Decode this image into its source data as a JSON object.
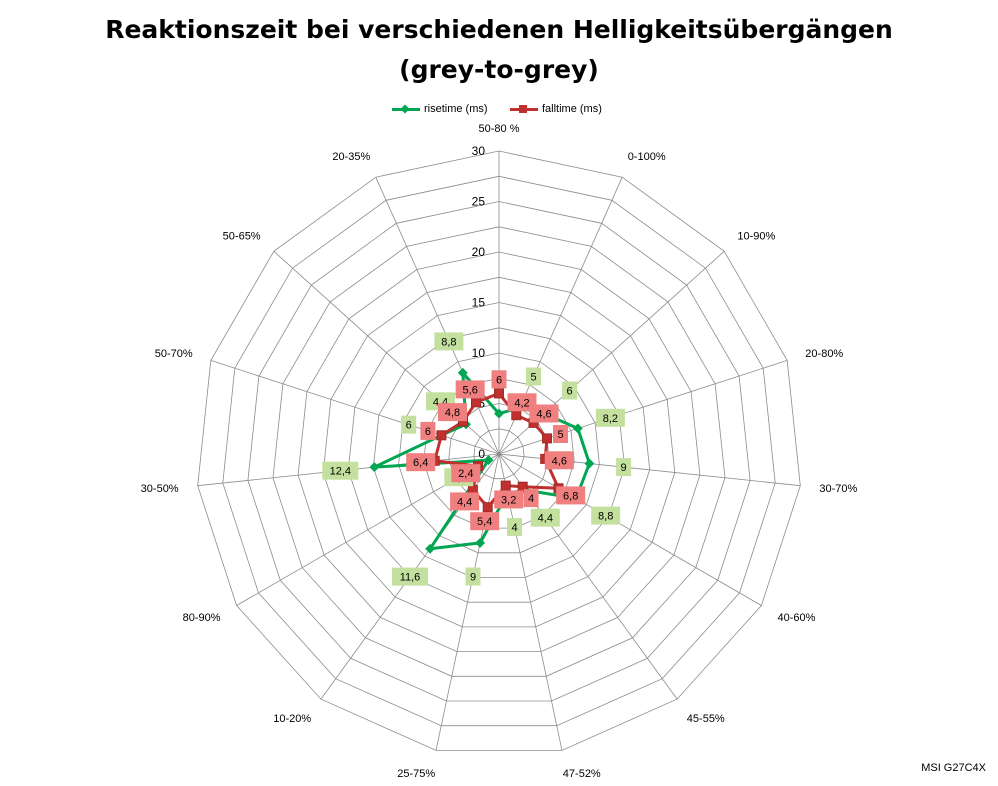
{
  "footer": {
    "model": "MSI G27C4X"
  },
  "chart_data": {
    "type": "radar",
    "title": "Reaktionszeit bei verschiedenen Helligkeitsübergängen",
    "subtitle": "(grey-to-grey)",
    "categories": [
      "50-80 %",
      "0-100%",
      "10-90%",
      "20-80%",
      "30-70%",
      "40-60%",
      "45-55%",
      "47-52%",
      "25-75%",
      "10-20%",
      "80-90%",
      "30-50%",
      "50-70%",
      "50-65%",
      "20-35%"
    ],
    "series": [
      {
        "name": "risetime (ms)",
        "color": "#00a651",
        "label_bg": "#c4e09e",
        "values": [
          4,
          5,
          6,
          8.2,
          9,
          8.8,
          4.4,
          4,
          9,
          11.6,
          1.2,
          12.4,
          6,
          4.4,
          8.8
        ]
      },
      {
        "name": "falltime (ms)",
        "color": "#c0302e",
        "label_bg": "#f08080",
        "values": [
          6,
          4.2,
          4.6,
          5,
          4.6,
          6.8,
          4,
          3.2,
          5.4,
          4.4,
          2.4,
          6.4,
          6,
          4.8,
          5.6
        ]
      }
    ],
    "r_axis": {
      "min": 0,
      "max": 30,
      "major_step": 5,
      "ring_step": 2.5,
      "tick_labels": [
        "0",
        "5",
        "10",
        "15",
        "20",
        "25",
        "30"
      ]
    },
    "legend_position": "top",
    "grid": true
  }
}
